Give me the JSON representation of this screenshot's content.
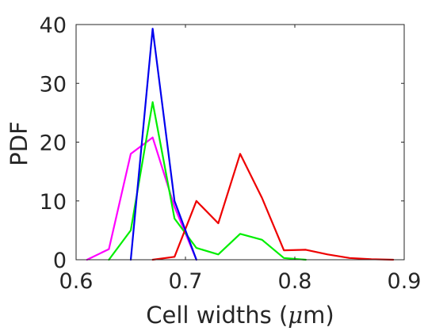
{
  "chart_data": {
    "type": "line",
    "title": "",
    "xlabel_main": "Cell widths (",
    "xlabel_mu": "μ",
    "xlabel_unit": "m)",
    "ylabel": "PDF",
    "xlim": [
      0.6,
      0.9
    ],
    "ylim": [
      0,
      40
    ],
    "xticks": [
      0.6,
      0.7,
      0.8,
      0.9
    ],
    "xtick_labels": [
      "0.6",
      "0.7",
      "0.8",
      "0.9"
    ],
    "yticks": [
      0,
      10,
      20,
      30,
      40
    ],
    "ytick_labels": [
      "0",
      "10",
      "20",
      "30",
      "40"
    ],
    "grid": false,
    "series": [
      {
        "color": "#ff00ff",
        "x": [
          0.61,
          0.63,
          0.65,
          0.67,
          0.69,
          0.71
        ],
        "y": [
          0,
          1.8,
          18,
          20.8,
          9,
          0
        ]
      },
      {
        "color": "#00ee00",
        "x": [
          0.63,
          0.65,
          0.67,
          0.69,
          0.71,
          0.73,
          0.75,
          0.77,
          0.79,
          0.81
        ],
        "y": [
          0,
          5,
          26.8,
          7,
          2,
          0.9,
          4.4,
          3.4,
          0.3,
          0
        ]
      },
      {
        "color": "#ee0000",
        "x": [
          0.67,
          0.69,
          0.71,
          0.73,
          0.75,
          0.77,
          0.79,
          0.81,
          0.83,
          0.85,
          0.87,
          0.89
        ],
        "y": [
          0,
          0.5,
          10,
          6.2,
          18,
          10.5,
          1.6,
          1.7,
          0.9,
          0.3,
          0.1,
          0
        ]
      },
      {
        "color": "#0000ee",
        "x": [
          0.65,
          0.67,
          0.69,
          0.71
        ],
        "y": [
          0,
          39.3,
          10,
          0
        ]
      }
    ]
  }
}
